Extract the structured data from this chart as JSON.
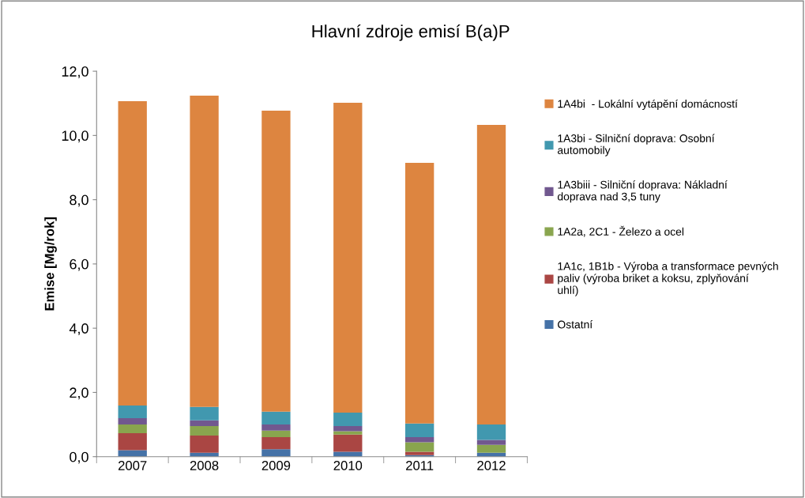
{
  "chart_data": {
    "type": "bar",
    "stacked": true,
    "title": "Hlavní zdroje emisí B(a)P",
    "ylabel": "Emise [Mg/rok]",
    "categories": [
      "2007",
      "2008",
      "2009",
      "2010",
      "2011",
      "2012"
    ],
    "series": [
      {
        "name": "Ostatní",
        "color": "#4572a7",
        "values": [
          0.2,
          0.12,
          0.23,
          0.15,
          0.05,
          0.12
        ]
      },
      {
        "name": "1A1c, 1B1b - Výroba a transformace pevných paliv (výroba briket a koksu, zplyňování uhlí)",
        "color": "#aa4643",
        "values": [
          0.53,
          0.54,
          0.38,
          0.54,
          0.1,
          0.0
        ]
      },
      {
        "name": "1A2a, 2C1 - Železo a ocel",
        "color": "#89a54e",
        "values": [
          0.27,
          0.29,
          0.2,
          0.1,
          0.3,
          0.25
        ]
      },
      {
        "name": "1A3biii - Silniční doprava: Nákladní doprava nad 3,5 tuny",
        "color": "#71588f",
        "values": [
          0.2,
          0.18,
          0.19,
          0.16,
          0.16,
          0.15
        ]
      },
      {
        "name": "1A3bi - Silniční doprava: Osobní automobily",
        "color": "#4198af",
        "values": [
          0.39,
          0.42,
          0.4,
          0.42,
          0.42,
          0.48
        ]
      },
      {
        "name": "1A4bi  - Lokální vytápění domácností",
        "color": "#dd8540",
        "values": [
          9.48,
          9.69,
          9.37,
          9.65,
          8.12,
          9.33
        ]
      }
    ],
    "ylim": [
      0,
      12
    ],
    "yticks": [
      {
        "value": 0,
        "label": "0,0"
      },
      {
        "value": 2,
        "label": "2,0"
      },
      {
        "value": 4,
        "label": "4,0"
      },
      {
        "value": 6,
        "label": "6,0"
      },
      {
        "value": 8,
        "label": "8,0"
      },
      {
        "value": 10,
        "label": "10,0"
      },
      {
        "value": 12,
        "label": "12,0"
      }
    ],
    "grid": false,
    "legend": "right"
  }
}
